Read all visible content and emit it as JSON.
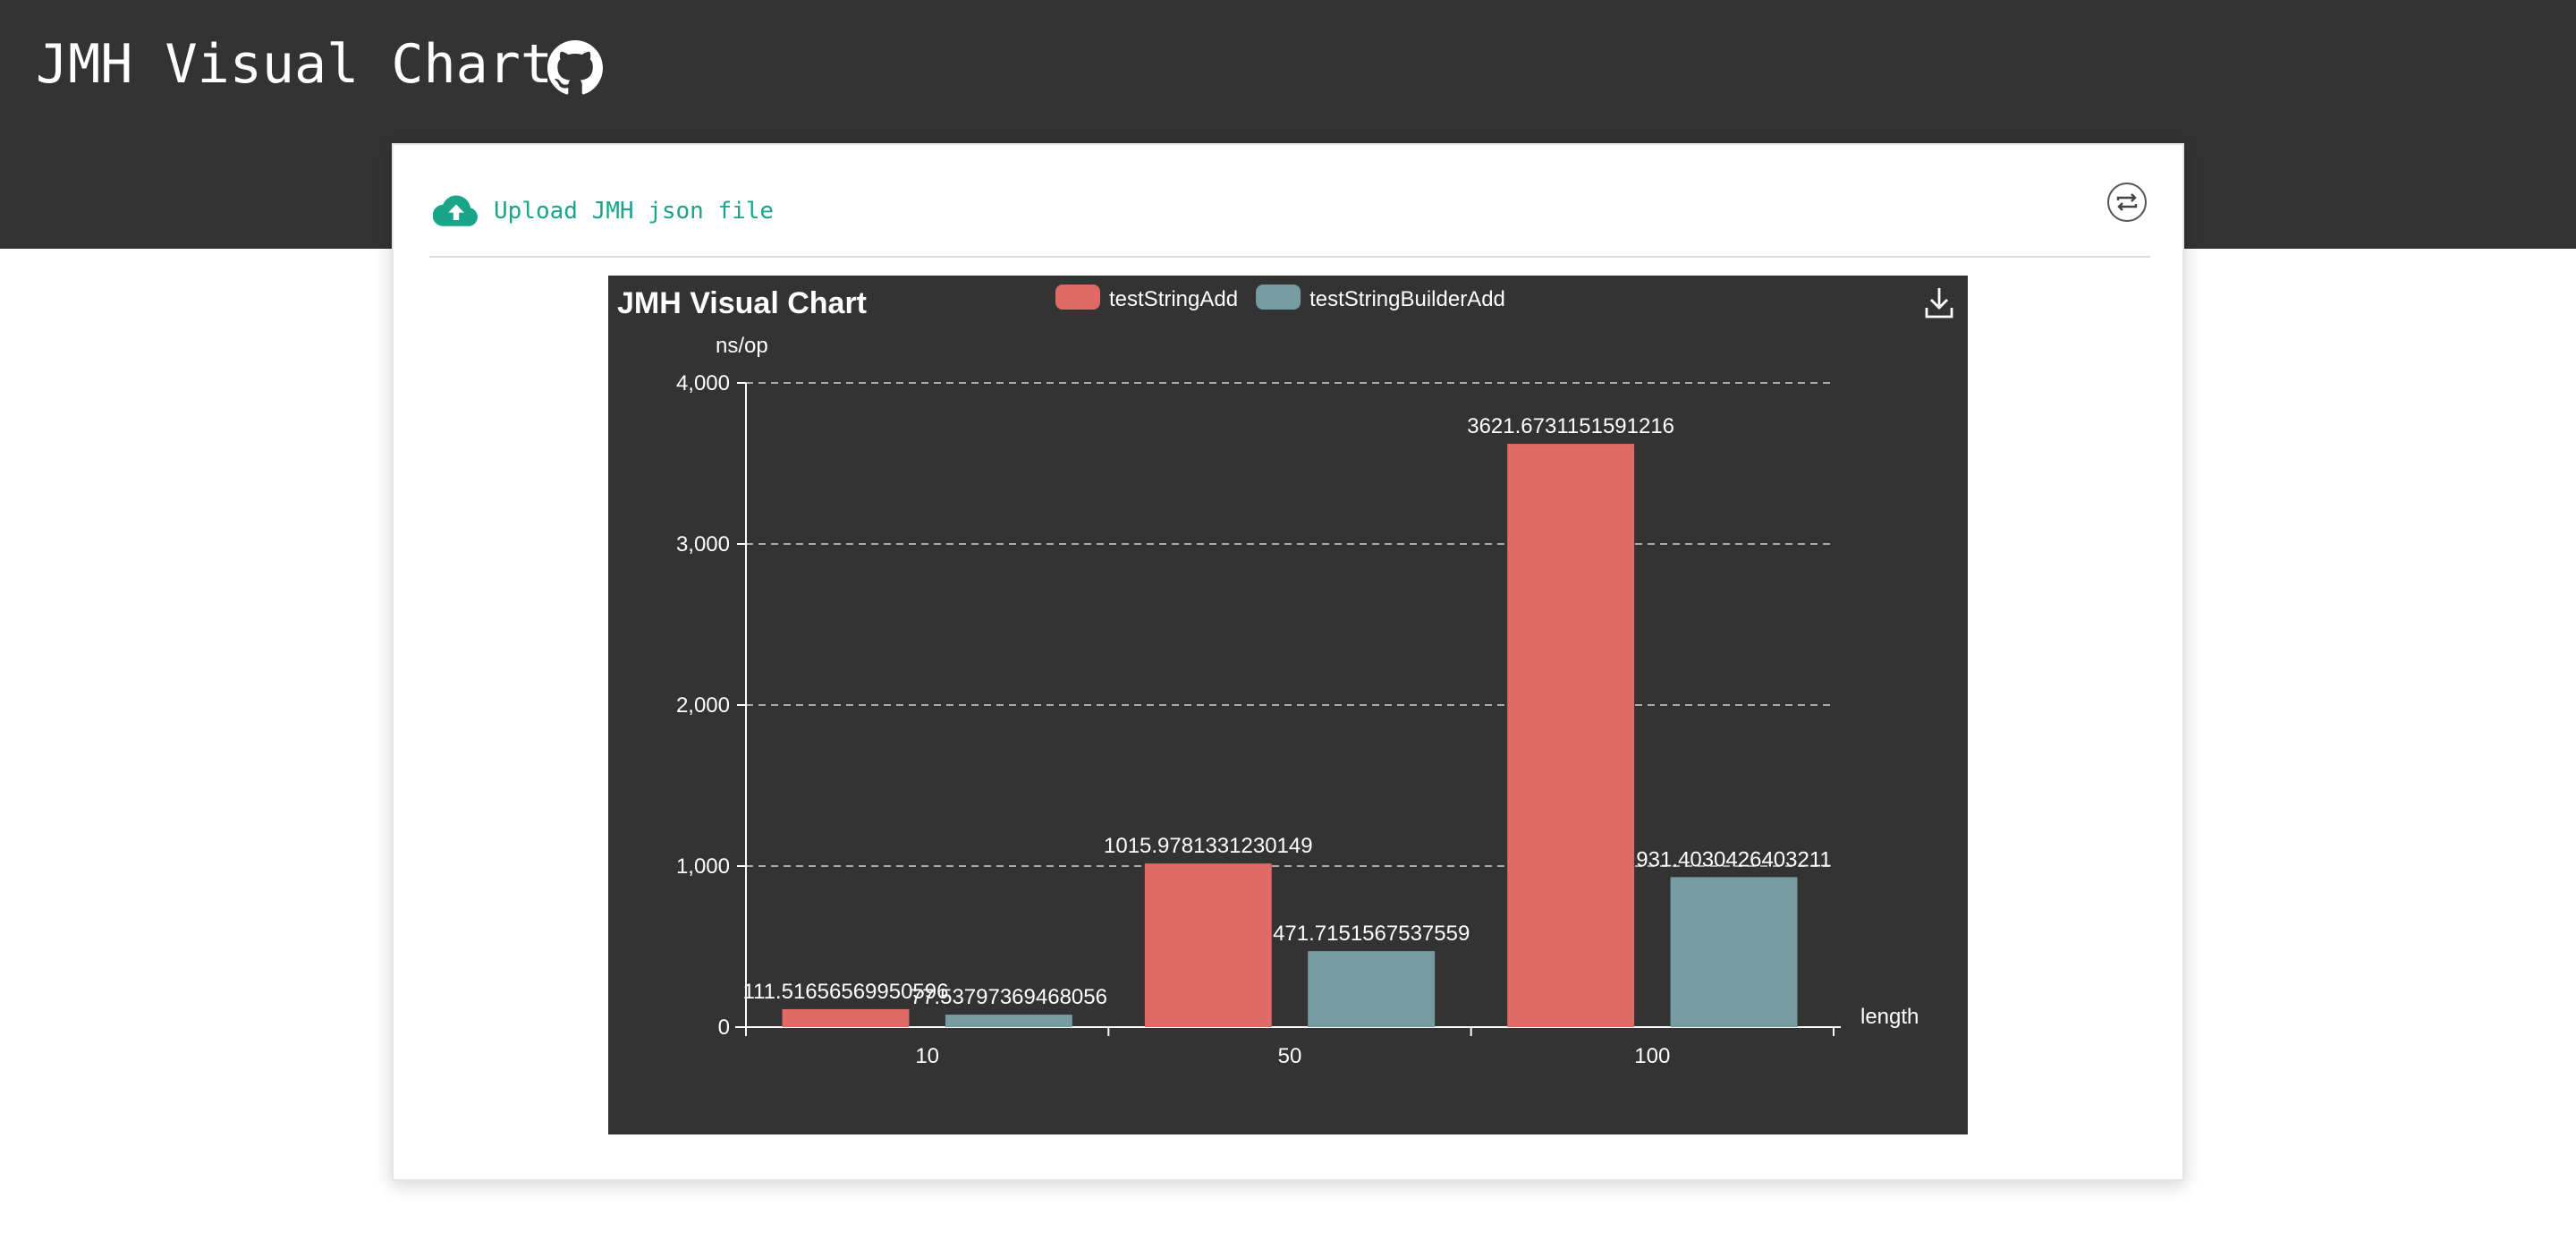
{
  "header": {
    "title": "JMH Visual Chart",
    "github_icon": "github-icon"
  },
  "toolbar": {
    "upload_label": "Upload JMH json file",
    "upload_icon": "cloud-upload-icon",
    "switch_icon": "switch-view-icon"
  },
  "colors": {
    "header_bg": "#333333",
    "accent": "#1aa58a",
    "series_1": "#e06b66",
    "series_2": "#769ca1"
  },
  "chart_data": {
    "type": "bar",
    "title": "JMH Visual Chart",
    "xlabel": "length",
    "ylabel": "ns/op",
    "categories": [
      "10",
      "50",
      "100"
    ],
    "series": [
      {
        "name": "testStringAdd",
        "values": [
          111.51656569950596,
          1015.9781331230149,
          3621.6731151591216
        ],
        "labels": [
          "111.51656569950596",
          "1015.9781331230149",
          "3621.6731151591216"
        ]
      },
      {
        "name": "testStringBuilderAdd",
        "values": [
          77.53797369468056,
          471.7151567537559,
          931.4030426403211
        ],
        "labels": [
          "77.53797369468056",
          "471.7151567537559",
          "931.4030426403211"
        ]
      }
    ],
    "ylim": [
      0,
      4000
    ],
    "yticks": [
      0,
      1000,
      2000,
      3000,
      4000
    ],
    "ytick_labels": [
      "0",
      "1,000",
      "2,000",
      "3,000",
      "4,000"
    ],
    "grid": true,
    "legend": "top-center",
    "download_icon": "download-icon"
  }
}
